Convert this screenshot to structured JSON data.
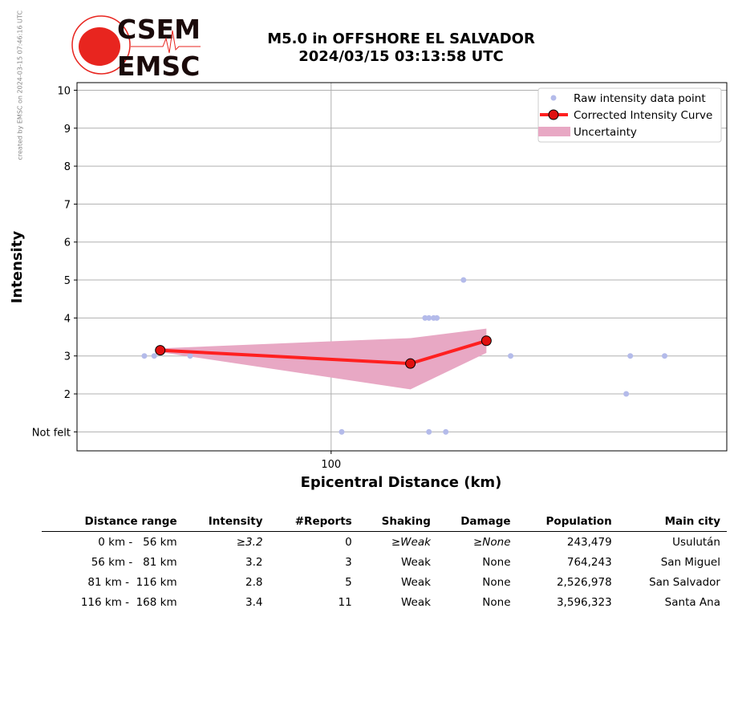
{
  "side_note": "created by EMSC on 2024-03-15 07:46:16 UTC",
  "logo": {
    "top": "CSEM",
    "bottom": "EMSC"
  },
  "title": {
    "line1": "M5.0 in OFFSHORE EL SALVADOR",
    "line2": "2024/03/15 03:13:58 UTC"
  },
  "chart_data": {
    "type": "line",
    "xlabel": "Epicentral Distance (km)",
    "ylabel": "Intensity",
    "xscale": "log",
    "xlim": [
      51.5,
      281
    ],
    "ylim": [
      0.5,
      10.2
    ],
    "xticks": [
      100
    ],
    "xtick_labels": [
      "100"
    ],
    "yticks": [
      1,
      2,
      3,
      4,
      5,
      6,
      7,
      8,
      9,
      10
    ],
    "ytick_labels": [
      "Not felt",
      "2",
      "3",
      "4",
      "5",
      "6",
      "7",
      "8",
      "9",
      "10"
    ],
    "grid": true,
    "legend_position": "top-right",
    "legend": [
      "Raw intensity data point",
      "Corrected Intensity Curve",
      "Uncertainty"
    ],
    "raw_points": [
      [
        61.4,
        3
      ],
      [
        63.0,
        3
      ],
      [
        69.2,
        3
      ],
      [
        102.8,
        1
      ],
      [
        127.8,
        4
      ],
      [
        129.1,
        4
      ],
      [
        130.7,
        4
      ],
      [
        131.8,
        4
      ],
      [
        141.3,
        5
      ],
      [
        159.8,
        3
      ],
      [
        218.4,
        3
      ],
      [
        238.9,
        3
      ],
      [
        216.1,
        2
      ],
      [
        129.1,
        1
      ],
      [
        134.9,
        1
      ]
    ],
    "curve": {
      "x": [
        64,
        123,
        150
      ],
      "y": [
        3.15,
        2.8,
        3.4
      ]
    },
    "uncertainty": {
      "x": [
        64,
        123,
        150
      ],
      "low": [
        3.1,
        2.12,
        3.08
      ],
      "high": [
        3.2,
        3.47,
        3.72
      ]
    },
    "colors": {
      "raw": "#b4bbea",
      "curve": "#ff2020",
      "marker": "#e01010",
      "band": "#e8a8c4"
    }
  },
  "table": {
    "headers": [
      "Distance range",
      "Intensity",
      "#Reports",
      "Shaking",
      "Damage",
      "Population",
      "Main city"
    ],
    "rows": [
      [
        "0 km -   56 km",
        "≥3.2",
        "0",
        "≥Weak",
        "≥None",
        "243,479",
        "Usulután"
      ],
      [
        "56 km -   81 km",
        "3.2",
        "3",
        "Weak",
        "None",
        "764,243",
        "San Miguel"
      ],
      [
        "81 km -  116 km",
        "2.8",
        "5",
        "Weak",
        "None",
        "2,526,978",
        "San Salvador"
      ],
      [
        "116 km -  168 km",
        "3.4",
        "11",
        "Weak",
        "None",
        "3,596,323",
        "Santa Ana"
      ]
    ]
  }
}
